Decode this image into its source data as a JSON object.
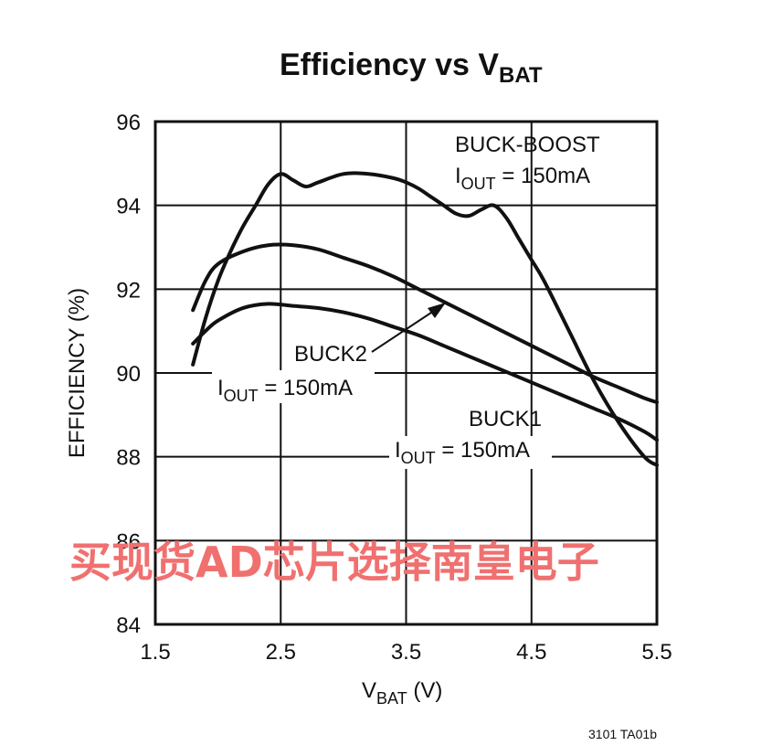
{
  "chart_data": {
    "type": "line",
    "title": {
      "main": "Efficiency vs V",
      "sub": "BAT"
    },
    "xlabel": {
      "main": "V",
      "sub": "BAT",
      "suffix": " (V)"
    },
    "ylabel": "EFFICIENCY (%)",
    "xlim": [
      1.5,
      5.5
    ],
    "ylim": [
      84,
      96
    ],
    "xticks": [
      "1.5",
      "2.5",
      "3.5",
      "4.5",
      "5.5"
    ],
    "yticks": [
      "84",
      "86",
      "88",
      "90",
      "92",
      "94",
      "96"
    ],
    "xtick_values": [
      1.5,
      2.5,
      3.5,
      4.5,
      5.5
    ],
    "ytick_values": [
      84,
      86,
      88,
      90,
      92,
      94,
      96
    ],
    "grid": true,
    "series": [
      {
        "name": "BUCK-BOOST",
        "x": [
          1.8,
          1.9,
          2.0,
          2.1,
          2.2,
          2.3,
          2.4,
          2.5,
          2.6,
          2.7,
          2.8,
          3.0,
          3.2,
          3.4,
          3.5,
          3.6,
          3.7,
          3.8,
          3.9,
          4.0,
          4.1,
          4.2,
          4.3,
          4.4,
          4.5,
          4.6,
          4.8,
          5.0,
          5.2,
          5.4,
          5.5
        ],
        "values": [
          90.2,
          91.3,
          92.2,
          92.9,
          93.5,
          94.0,
          94.5,
          94.75,
          94.6,
          94.45,
          94.55,
          94.75,
          94.75,
          94.65,
          94.55,
          94.4,
          94.2,
          94.0,
          93.8,
          93.75,
          93.9,
          94.0,
          93.7,
          93.2,
          92.7,
          92.2,
          91.0,
          89.8,
          88.8,
          88.0,
          87.8
        ]
      },
      {
        "name": "BUCK2",
        "x": [
          1.8,
          1.9,
          2.0,
          2.2,
          2.4,
          2.6,
          2.8,
          3.0,
          3.2,
          3.4,
          3.6,
          3.8,
          4.0,
          4.2,
          4.4,
          4.6,
          4.8,
          5.0,
          5.2,
          5.4,
          5.5
        ],
        "values": [
          91.5,
          92.2,
          92.6,
          92.9,
          93.05,
          93.05,
          92.95,
          92.75,
          92.55,
          92.3,
          92.0,
          91.7,
          91.4,
          91.1,
          90.8,
          90.5,
          90.2,
          89.9,
          89.65,
          89.4,
          89.3
        ]
      },
      {
        "name": "BUCK1",
        "x": [
          1.8,
          1.9,
          2.0,
          2.2,
          2.4,
          2.6,
          2.8,
          3.0,
          3.2,
          3.4,
          3.6,
          3.8,
          4.0,
          4.2,
          4.4,
          4.6,
          4.8,
          5.0,
          5.2,
          5.4,
          5.5
        ],
        "values": [
          90.7,
          91.0,
          91.25,
          91.55,
          91.65,
          91.6,
          91.55,
          91.45,
          91.3,
          91.1,
          90.9,
          90.65,
          90.4,
          90.15,
          89.9,
          89.65,
          89.4,
          89.15,
          88.9,
          88.6,
          88.4
        ]
      }
    ],
    "annotations": [
      {
        "name": "buck-boost",
        "line1": "BUCK-BOOST",
        "line2_main": "I",
        "line2_sub": "OUT",
        "line2_rest": " = 150mA"
      },
      {
        "name": "buck2",
        "line1": "BUCK2",
        "line2_main": "I",
        "line2_sub": "OUT",
        "line2_rest": " = 150mA"
      },
      {
        "name": "buck1",
        "line1": "BUCK1",
        "line2_main": "I",
        "line2_sub": "OUT",
        "line2_rest": " = 150mA"
      }
    ]
  },
  "figure_id": "3101 TA01b",
  "watermark": "买现货AD芯片选择南皇电子",
  "colors": {
    "line": "#111111",
    "watermark": "#f07070"
  }
}
